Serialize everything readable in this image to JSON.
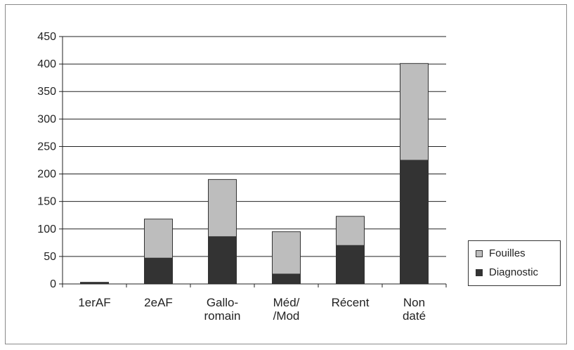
{
  "chart_data": {
    "type": "bar",
    "stacked": true,
    "categories": [
      [
        "1erAF"
      ],
      [
        "2eAF"
      ],
      [
        "Gallo-",
        "romain"
      ],
      [
        "Méd/",
        "/Mod"
      ],
      [
        "Récent"
      ],
      [
        "Non",
        "daté"
      ]
    ],
    "series": [
      {
        "name": "Diagnostic",
        "color": "#333333",
        "values": [
          2,
          47,
          86,
          18,
          70,
          225
        ]
      },
      {
        "name": "Fouilles",
        "color": "#bdbdbd",
        "values": [
          1,
          71,
          104,
          77,
          53,
          176
        ]
      }
    ],
    "yticks": [
      0,
      50,
      100,
      150,
      200,
      250,
      300,
      350,
      400,
      450
    ],
    "ylim": [
      0,
      450
    ],
    "grid": true,
    "legend_position": "right",
    "legend_order": [
      "Fouilles",
      "Diagnostic"
    ]
  }
}
